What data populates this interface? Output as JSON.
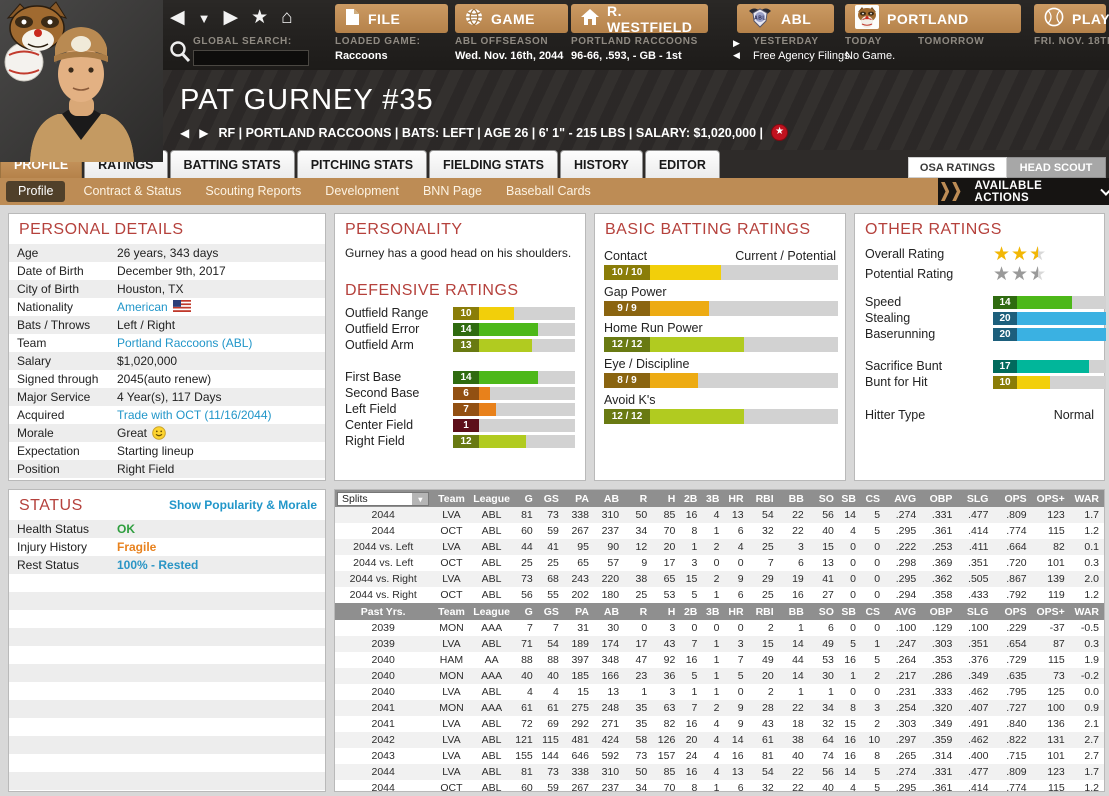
{
  "topbar": {
    "search_label": "GLOBAL SEARCH:",
    "nav_icons": [
      "back-icon",
      "dropdown-icon",
      "forward-icon",
      "star-icon",
      "home-icon"
    ],
    "buttons": [
      {
        "label": "FILE",
        "icon": "file-icon"
      },
      {
        "label": "GAME",
        "icon": "globe-icon"
      },
      {
        "label": "R. WESTFIELD",
        "icon": "home-icon"
      },
      {
        "label": "ABL",
        "icon": "league-logo"
      },
      {
        "label": "PORTLAND",
        "icon": "raccoon-logo"
      },
      {
        "label": "PLAY",
        "icon": "baseball-icon"
      }
    ],
    "info_columns": [
      {
        "label": "LOADED GAME:",
        "value": "Raccoons",
        "bold": true
      },
      {
        "label": "ABL OFFSEASON",
        "value": "Wed. Nov. 16th, 2044",
        "bold": true
      },
      {
        "label": "PORTLAND RACCOONS",
        "value": "96-66, .593, - GB - 1st",
        "bold": true
      },
      {
        "label": "YESTERDAY",
        "value": "Free Agency Filings",
        "bold": false
      },
      {
        "label": "TODAY",
        "value": "No Game.",
        "bold": false
      },
      {
        "label": "TOMORROW",
        "value": "",
        "bold": false
      },
      {
        "label": "FRI. NOV. 18TH",
        "value": "",
        "bold": false
      }
    ]
  },
  "player": {
    "name": "PAT GURNEY  #35",
    "details": "RF | PORTLAND RACCOONS  |  BATS: LEFT  |  AGE 26  |  6' 1\" - 215 LBS  |  SALARY: $1,020,000  |"
  },
  "tabs": [
    "PROFILE",
    "RATINGS",
    "BATTING STATS",
    "PITCHING STATS",
    "FIELDING STATS",
    "HISTORY",
    "EDITOR"
  ],
  "active_tab": "PROFILE",
  "scout_buttons": [
    "OSA RATINGS",
    "HEAD SCOUT"
  ],
  "subtabs": [
    "Profile",
    "Contract & Status",
    "Scouting Reports",
    "Development",
    "BNN Page",
    "Baseball Cards"
  ],
  "active_subtab": "Profile",
  "actions_label": "AVAILABLE ACTIONS",
  "personal_details": {
    "title": "PERSONAL DETAILS",
    "rows": [
      {
        "label": "Age",
        "value": "26 years, 343 days"
      },
      {
        "label": "Date of Birth",
        "value": "December 9th, 2017"
      },
      {
        "label": "City of Birth",
        "value": "Houston, TX"
      },
      {
        "label": "Nationality",
        "value": "American",
        "link": true,
        "flag": true
      },
      {
        "label": "Bats / Throws",
        "value": "Left / Right"
      },
      {
        "label": "Team",
        "value": "Portland Raccoons (ABL)",
        "link": true
      },
      {
        "label": "Salary",
        "value": "$1,020,000"
      },
      {
        "label": "Signed through",
        "value": "2045(auto renew)"
      },
      {
        "label": "Major Service",
        "value": "4 Year(s), 117 Days"
      },
      {
        "label": "Acquired",
        "value": "Trade with OCT (11/16/2044)",
        "link": true
      },
      {
        "label": "Morale",
        "value": "Great",
        "smiley": true
      },
      {
        "label": "Expectation",
        "value": "Starting lineup"
      },
      {
        "label": "Position",
        "value": "Right Field"
      }
    ]
  },
  "personality": {
    "title": "PERSONALITY",
    "text": "Gurney has a good head on his shoulders."
  },
  "defensive_ratings": {
    "title": "DEFENSIVE RATINGS",
    "items": [
      {
        "label": "Outfield Range",
        "value": 10
      },
      {
        "label": "Outfield Error",
        "value": 14
      },
      {
        "label": "Outfield Arm",
        "value": 13
      },
      {
        "spacer": true
      },
      {
        "label": "First Base",
        "value": 14
      },
      {
        "label": "Second Base",
        "value": 6
      },
      {
        "label": "Left Field",
        "value": 7
      },
      {
        "label": "Center Field",
        "value": 1
      },
      {
        "label": "Right Field",
        "value": 12
      }
    ]
  },
  "batting_ratings": {
    "title": "BASIC BATTING RATINGS",
    "scale_label": "Current / Potential",
    "items": [
      {
        "label": "Contact",
        "current": 10,
        "potential": 10
      },
      {
        "label": "Gap Power",
        "current": 9,
        "potential": 9
      },
      {
        "label": "Home Run Power",
        "current": 12,
        "potential": 12
      },
      {
        "label": "Eye / Discipline",
        "current": 8,
        "potential": 9
      },
      {
        "label": "Avoid K's",
        "current": 12,
        "potential": 12
      }
    ]
  },
  "other_ratings": {
    "title": "OTHER RATINGS",
    "stars": [
      {
        "label": "Overall Rating",
        "value": 2.5,
        "style": "gold"
      },
      {
        "label": "Potential Rating",
        "value": 2.5,
        "style": "silver"
      }
    ],
    "bars": [
      {
        "label": "Speed",
        "value": 14
      },
      {
        "label": "Stealing",
        "value": 20
      },
      {
        "label": "Baserunning",
        "value": 20
      },
      {
        "spacer": true
      },
      {
        "label": "Sacrifice Bunt",
        "value": 17
      },
      {
        "label": "Bunt for Hit",
        "value": 10
      }
    ],
    "hitter_type_label": "Hitter Type",
    "hitter_type_value": "Normal"
  },
  "status": {
    "title": "STATUS",
    "link": "Show Popularity & Morale",
    "rows": [
      {
        "label": "Health Status",
        "value": "OK",
        "color": "#2e9e3e"
      },
      {
        "label": "Injury History",
        "value": "Fragile",
        "color": "#e8821e"
      },
      {
        "label": "Rest Status",
        "value": "100% - Rested",
        "color": "#2a95c5"
      }
    ]
  },
  "stats": {
    "splits_label": "Splits",
    "past_label": "Past Yrs.",
    "columns": [
      "Team",
      "League",
      "G",
      "GS",
      "PA",
      "AB",
      "R",
      "H",
      "2B",
      "3B",
      "HR",
      "RBI",
      "BB",
      "SO",
      "SB",
      "CS",
      "AVG",
      "OBP",
      "SLG",
      "OPS",
      "OPS+",
      "WAR"
    ],
    "splits_rows": [
      [
        "2044",
        "LVA",
        "ABL",
        "81",
        "73",
        "338",
        "310",
        "50",
        "85",
        "16",
        "4",
        "13",
        "54",
        "22",
        "56",
        "14",
        "5",
        ".274",
        ".331",
        ".477",
        ".809",
        "123",
        "1.7"
      ],
      [
        "2044",
        "OCT",
        "ABL",
        "60",
        "59",
        "267",
        "237",
        "34",
        "70",
        "8",
        "1",
        "6",
        "32",
        "22",
        "40",
        "4",
        "5",
        ".295",
        ".361",
        ".414",
        ".774",
        "115",
        "1.2"
      ],
      [
        "2044 vs. Left",
        "LVA",
        "ABL",
        "44",
        "41",
        "95",
        "90",
        "12",
        "20",
        "1",
        "2",
        "4",
        "25",
        "3",
        "15",
        "0",
        "0",
        ".222",
        ".253",
        ".411",
        ".664",
        "82",
        "0.1"
      ],
      [
        "2044 vs. Left",
        "OCT",
        "ABL",
        "25",
        "25",
        "65",
        "57",
        "9",
        "17",
        "3",
        "0",
        "0",
        "7",
        "6",
        "13",
        "0",
        "0",
        ".298",
        ".369",
        ".351",
        ".720",
        "101",
        "0.3"
      ],
      [
        "2044 vs. Right",
        "LVA",
        "ABL",
        "73",
        "68",
        "243",
        "220",
        "38",
        "65",
        "15",
        "2",
        "9",
        "29",
        "19",
        "41",
        "0",
        "0",
        ".295",
        ".362",
        ".505",
        ".867",
        "139",
        "2.0"
      ],
      [
        "2044 vs. Right",
        "OCT",
        "ABL",
        "56",
        "55",
        "202",
        "180",
        "25",
        "53",
        "5",
        "1",
        "6",
        "25",
        "16",
        "27",
        "0",
        "0",
        ".294",
        ".358",
        ".433",
        ".792",
        "119",
        "1.2"
      ]
    ],
    "past_rows": [
      [
        "2039",
        "MON",
        "AAA",
        "7",
        "7",
        "31",
        "30",
        "0",
        "3",
        "0",
        "0",
        "0",
        "2",
        "1",
        "6",
        "0",
        "0",
        ".100",
        ".129",
        ".100",
        ".229",
        "-37",
        "-0.5"
      ],
      [
        "2039",
        "LVA",
        "ABL",
        "71",
        "54",
        "189",
        "174",
        "17",
        "43",
        "7",
        "1",
        "3",
        "15",
        "14",
        "49",
        "5",
        "1",
        ".247",
        ".303",
        ".351",
        ".654",
        "87",
        "0.3"
      ],
      [
        "2040",
        "HAM",
        "AA",
        "88",
        "88",
        "397",
        "348",
        "47",
        "92",
        "16",
        "1",
        "7",
        "49",
        "44",
        "53",
        "16",
        "5",
        ".264",
        ".353",
        ".376",
        ".729",
        "115",
        "1.9"
      ],
      [
        "2040",
        "MON",
        "AAA",
        "40",
        "40",
        "185",
        "166",
        "23",
        "36",
        "5",
        "1",
        "5",
        "20",
        "14",
        "30",
        "1",
        "2",
        ".217",
        ".286",
        ".349",
        ".635",
        "73",
        "-0.2"
      ],
      [
        "2040",
        "LVA",
        "ABL",
        "4",
        "4",
        "15",
        "13",
        "1",
        "3",
        "1",
        "1",
        "0",
        "2",
        "1",
        "1",
        "0",
        "0",
        ".231",
        ".333",
        ".462",
        ".795",
        "125",
        "0.0"
      ],
      [
        "2041",
        "MON",
        "AAA",
        "61",
        "61",
        "275",
        "248",
        "35",
        "63",
        "7",
        "2",
        "9",
        "28",
        "22",
        "34",
        "8",
        "3",
        ".254",
        ".320",
        ".407",
        ".727",
        "100",
        "0.9"
      ],
      [
        "2041",
        "LVA",
        "ABL",
        "72",
        "69",
        "292",
        "271",
        "35",
        "82",
        "16",
        "4",
        "9",
        "43",
        "18",
        "32",
        "15",
        "2",
        ".303",
        ".349",
        ".491",
        ".840",
        "136",
        "2.1"
      ],
      [
        "2042",
        "LVA",
        "ABL",
        "121",
        "115",
        "481",
        "424",
        "58",
        "126",
        "20",
        "4",
        "14",
        "61",
        "38",
        "64",
        "16",
        "10",
        ".297",
        ".359",
        ".462",
        ".822",
        "131",
        "2.7"
      ],
      [
        "2043",
        "LVA",
        "ABL",
        "155",
        "144",
        "646",
        "592",
        "73",
        "157",
        "24",
        "4",
        "16",
        "81",
        "40",
        "74",
        "16",
        "8",
        ".265",
        ".314",
        ".400",
        ".715",
        "101",
        "2.7"
      ],
      [
        "2044",
        "LVA",
        "ABL",
        "81",
        "73",
        "338",
        "310",
        "50",
        "85",
        "16",
        "4",
        "13",
        "54",
        "22",
        "56",
        "14",
        "5",
        ".274",
        ".331",
        ".477",
        ".809",
        "123",
        "1.7"
      ],
      [
        "2044",
        "OCT",
        "ABL",
        "60",
        "59",
        "267",
        "237",
        "34",
        "70",
        "8",
        "1",
        "6",
        "32",
        "22",
        "40",
        "4",
        "5",
        ".295",
        ".361",
        ".414",
        ".774",
        "115",
        "1.2"
      ]
    ]
  }
}
